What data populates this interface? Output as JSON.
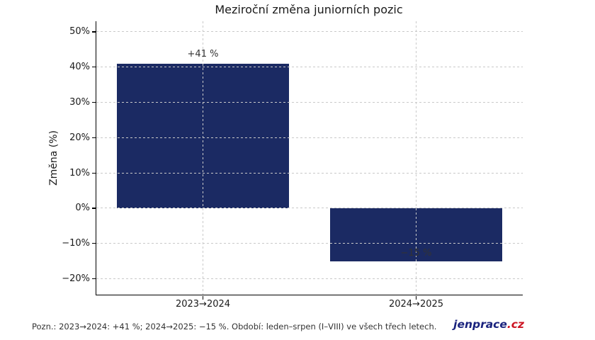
{
  "footer": {
    "note": "Pozn.: 2023→2024: +41 %; 2024→2025: −15 %. Období: leden–srpen (I–VIII) ve všech třech letech.",
    "logo": {
      "name": "jenprace",
      "tld": ".cz",
      "name_color": "#1a237e",
      "tld_color": "#cc1422"
    }
  },
  "chart_data": {
    "type": "bar",
    "title": "Meziroční změna juniorních pozic",
    "ylabel": "Změna (%)",
    "xlabel": "",
    "categories": [
      "2023→2024",
      "2024→2025"
    ],
    "values": [
      41,
      -15
    ],
    "bar_labels": [
      "+41 %",
      "−15 %"
    ],
    "yticks": [
      50,
      40,
      30,
      20,
      10,
      0,
      -10,
      -20
    ],
    "ytick_labels": [
      "50%",
      "40%",
      "30%",
      "20%",
      "10%",
      "0%",
      "−10%",
      "−20%"
    ],
    "ylim": [
      -24.5,
      53
    ],
    "grid": true,
    "grid_style": "dashed",
    "legend_position": "none",
    "bar_color": "#1b2a63",
    "grid_color": "#c9c9c9",
    "value_label_color": "#333333"
  }
}
